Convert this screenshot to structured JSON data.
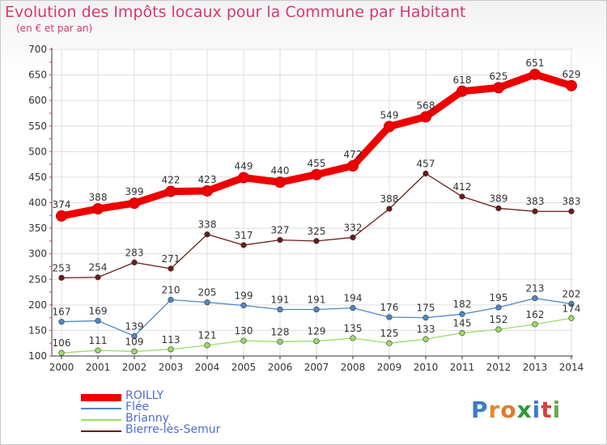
{
  "header": {
    "title": "Evolution des Impôts locaux pour la Commune par Habitant",
    "subtitle": "(en € et par an)"
  },
  "logo": {
    "letters": [
      "P",
      "r",
      "o",
      "x",
      "i",
      "t",
      "i"
    ]
  },
  "chart_data": {
    "type": "line",
    "title": "Evolution des Impôts locaux pour la Commune par Habitant",
    "subtitle": "(en € et par an)",
    "xlabel": "",
    "ylabel": "",
    "categories": [
      "2000",
      "2001",
      "2002",
      "2003",
      "2004",
      "2005",
      "2006",
      "2007",
      "2008",
      "2009",
      "2010",
      "2011",
      "2012",
      "2013",
      "2014"
    ],
    "ylim": [
      100,
      700
    ],
    "yticks": [
      100,
      150,
      200,
      250,
      300,
      350,
      400,
      450,
      500,
      550,
      600,
      650,
      700
    ],
    "grid": true,
    "legend_position": "bottom-left",
    "series": [
      {
        "name": "ROILLY",
        "color": "#ee0000",
        "stroke": 9,
        "marker": 6.5,
        "values": [
          374,
          388,
          399,
          422,
          423,
          449,
          440,
          455,
          472,
          549,
          568,
          618,
          625,
          651,
          629
        ]
      },
      {
        "name": "Flée",
        "color": "#4f88c6",
        "stroke": 1.3,
        "marker": 3.3,
        "values": [
          167,
          169,
          139,
          210,
          205,
          199,
          191,
          191,
          194,
          176,
          175,
          182,
          195,
          213,
          202
        ]
      },
      {
        "name": "Brianny",
        "color": "#99dd66",
        "stroke": 1.3,
        "marker": 3.3,
        "values": [
          106,
          111,
          109,
          113,
          121,
          130,
          128,
          129,
          135,
          125,
          133,
          145,
          152,
          162,
          174
        ]
      },
      {
        "name": "Bierre-lès-Semur",
        "color": "#6b1a1a",
        "stroke": 1.3,
        "marker": 3.3,
        "values": [
          253,
          254,
          283,
          271,
          338,
          317,
          327,
          325,
          332,
          388,
          457,
          412,
          389,
          383,
          383
        ]
      }
    ]
  }
}
